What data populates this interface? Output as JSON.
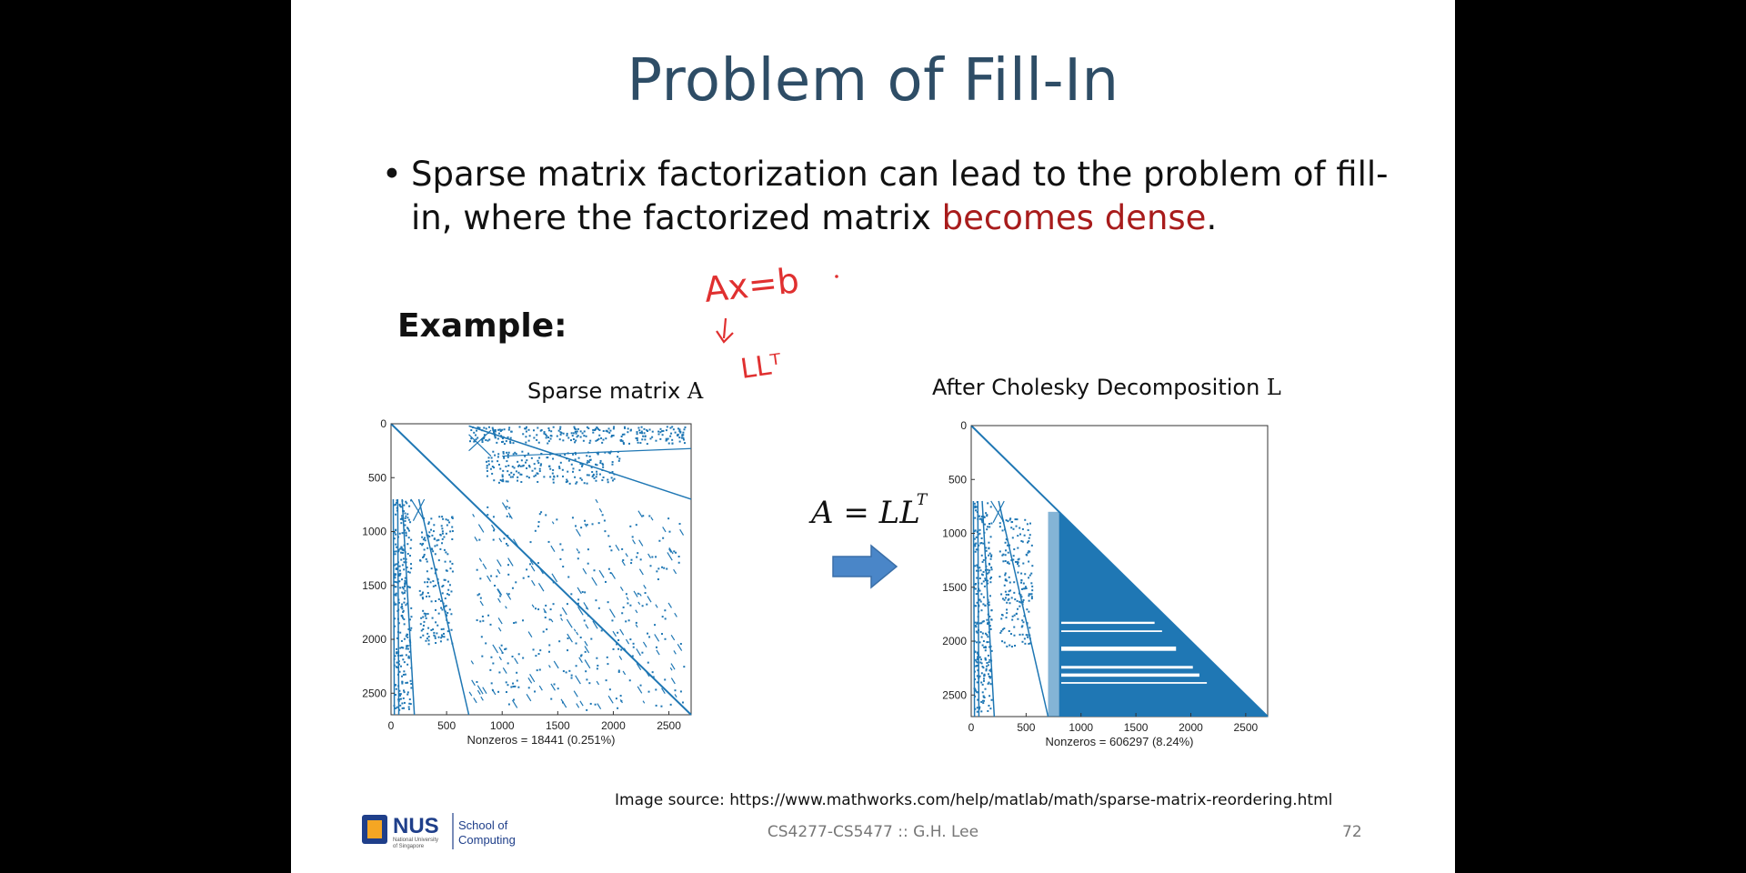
{
  "slide": {
    "title": "Problem of Fill-In",
    "bullet": {
      "text_before": "Sparse matrix factorization can lead to the problem of fill-in, where the factorized matrix ",
      "highlight": "becomes dense",
      "text_after": ".",
      "highlight_color": "#a81c1c"
    },
    "example_label": "Example:",
    "handwriting": {
      "line1": "Ax=b",
      "line2": "LLᵀ",
      "color": "#e03030"
    },
    "equation": {
      "lhs": "A = LL",
      "sup": "T"
    },
    "plot_a": {
      "title_text": "Sparse matrix ",
      "title_symbol": "A",
      "nonzeros": "Nonzeros = 18441 (0.251%)"
    },
    "plot_l": {
      "title_text": "After Cholesky Decomposition ",
      "title_symbol": "L",
      "nonzeros": "Nonzeros = 606297 (8.24%)"
    },
    "source": "Image source: https://www.mathworks.com/help/matlab/math/sparse-matrix-reordering.html",
    "footer": "CS4277-CS5477 :: G.H. Lee",
    "page_number": "72",
    "logo": {
      "main": "NUS",
      "sub1": "National University",
      "sub2": "of Singapore",
      "unit1": "School of",
      "unit2": "Computing"
    },
    "accent_color": "#1f77b4",
    "title_color": "#2e4d66"
  },
  "chart_data": [
    {
      "type": "spy",
      "title": "Sparse matrix A",
      "xlabel": "Nonzeros = 18441 (0.251%)",
      "x_ticks": [
        0,
        500,
        1000,
        1500,
        2000,
        2500
      ],
      "y_ticks": [
        0,
        500,
        1000,
        1500,
        2000,
        2500
      ],
      "xlim": [
        0,
        2700
      ],
      "ylim": [
        0,
        2700
      ],
      "nonzeros": 18441,
      "density_percent": 0.251
    },
    {
      "type": "spy",
      "title": "After Cholesky Decomposition L",
      "xlabel": "Nonzeros = 606297 (8.24%)",
      "x_ticks": [
        0,
        500,
        1000,
        1500,
        2000,
        2500
      ],
      "y_ticks": [
        0,
        500,
        1000,
        1500,
        2000,
        2500
      ],
      "xlim": [
        0,
        2700
      ],
      "ylim": [
        0,
        2700
      ],
      "nonzeros": 606297,
      "density_percent": 8.24
    }
  ]
}
